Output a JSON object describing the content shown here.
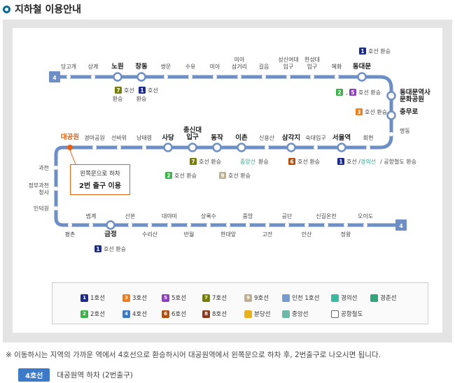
{
  "title": "지하철 이용안내",
  "line4_label": "4",
  "stations_top": [
    "당고개",
    "상계",
    "노원",
    "창동",
    "쌍문",
    "수유",
    "미아",
    "미아\n삼거리",
    "길음",
    "성신여대\n입구",
    "한성대\n입구",
    "혜화",
    "동대문"
  ],
  "stations_right": [
    "동대문역사\n문화공원",
    "충무로",
    "명동"
  ],
  "stations_middle": [
    "회현",
    "서울역",
    "숙대입구",
    "삼각지",
    "신용산",
    "이촌",
    "동작",
    "총신대\n입구",
    "사당",
    "남태령",
    "선바위",
    "경마공원",
    "대공원"
  ],
  "stations_left": [
    "과천",
    "정부과천\n청사",
    "인덕원"
  ],
  "stations_bottom": [
    "평촌",
    "범계",
    "금정",
    "산본",
    "수리산",
    "대야미",
    "반월",
    "상록수",
    "한대앞",
    "중앙",
    "고잔",
    "공단",
    "안산",
    "신길온천",
    "정왕",
    "오이도"
  ],
  "transfer_label": "호선 환승",
  "transfer_short": "호선",
  "transfer_suffix": "환승",
  "gyeongui": "경의선",
  "airport": "공항철도",
  "jungang": "중앙선",
  "callout": {
    "line1": "왼쪽문으로 하차",
    "line2": "2번 출구 이용"
  },
  "legend": [
    {
      "num": "1",
      "label": "1호선",
      "color": "#1d2a8a"
    },
    {
      "num": "3",
      "label": "3호선",
      "color": "#ef7c1c"
    },
    {
      "num": "5",
      "label": "5호선",
      "color": "#8b3fbf"
    },
    {
      "num": "7",
      "label": "7호선",
      "color": "#747f00"
    },
    {
      "num": "9",
      "label": "9호선",
      "color": "#bdb092"
    },
    {
      "num": "",
      "label": "인천 1호선",
      "color": "#759cce"
    },
    {
      "num": "",
      "label": "경의선",
      "color": "#3aba9e"
    },
    {
      "num": "",
      "label": "경춘선",
      "color": "#2fa67a"
    },
    {
      "num": "2",
      "label": "2호선",
      "color": "#3bb14a"
    },
    {
      "num": "4",
      "label": "4호선",
      "color": "#3c79c9"
    },
    {
      "num": "6",
      "label": "6호선",
      "color": "#b5500b"
    },
    {
      "num": "8",
      "label": "8호선",
      "color": "#8a3a1e"
    },
    {
      "num": "",
      "label": "분당선",
      "color": "#e8b21a"
    },
    {
      "num": "",
      "label": "중앙선",
      "color": "#6cb8a8"
    },
    {
      "num": "",
      "label": "공항철도",
      "color": "#ffffff"
    }
  ],
  "note": "※ 이동하시는 지역의 가까운 역에서 4호선으로 환승하시어 대공원역에서 왼쪽문으로 하차 후, 2번출구로 나오시면 됩니다.",
  "exit_badge": "4호선",
  "exit_text": "대공원역 하차 (2번출구)",
  "colors": {
    "line4": "#6d8fc6",
    "accent": "#e8600c",
    "line1": "#1d2a8a",
    "line2": "#3bb14a",
    "line3": "#ef7c1c",
    "line5": "#8b3fbf",
    "line6": "#b5500b",
    "line7": "#747f00",
    "line9": "#bdb092"
  }
}
